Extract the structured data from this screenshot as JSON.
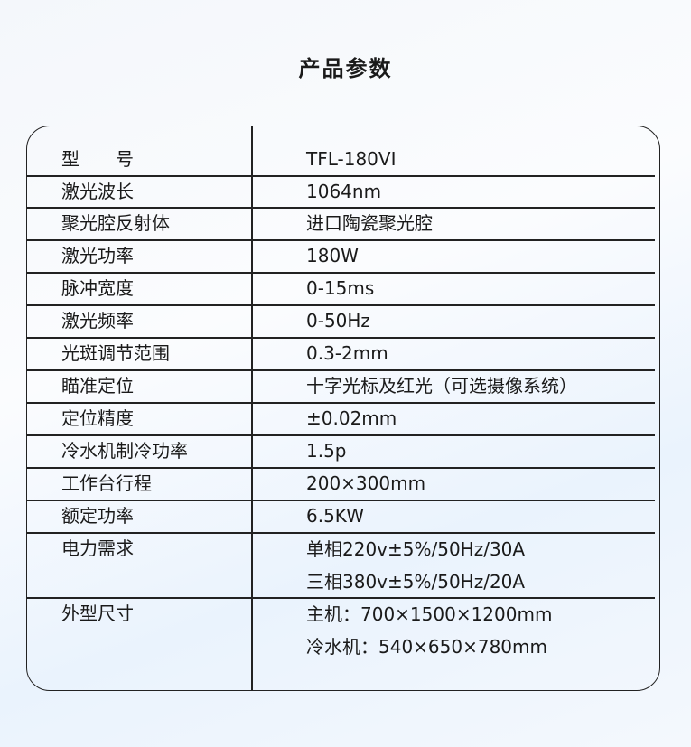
{
  "title": "产品参数",
  "rows": [
    {
      "label": "型　　号",
      "values": [
        "TFL-180VI"
      ]
    },
    {
      "label": "激光波长",
      "values": [
        "1064nm"
      ]
    },
    {
      "label": "聚光腔反射体",
      "values": [
        "进口陶瓷聚光腔"
      ]
    },
    {
      "label": "激光功率",
      "values": [
        "180W"
      ]
    },
    {
      "label": "脉冲宽度",
      "values": [
        "0-15ms"
      ]
    },
    {
      "label": "激光频率",
      "values": [
        "0-50Hz"
      ]
    },
    {
      "label": "光斑调节范围",
      "values": [
        "0.3-2mm"
      ]
    },
    {
      "label": "瞄准定位",
      "values": [
        "十字光标及红光（可选摄像系统）"
      ]
    },
    {
      "label": "定位精度",
      "values": [
        "±0.02mm"
      ]
    },
    {
      "label": "冷水机制冷功率",
      "values": [
        "1.5p"
      ]
    },
    {
      "label": "工作台行程",
      "values": [
        "200×300mm"
      ]
    },
    {
      "label": "额定功率",
      "values": [
        "6.5KW"
      ]
    },
    {
      "label": "电力需求",
      "values": [
        "单相220v±5%/50Hz/30A",
        "三相380v±5%/50Hz/20A"
      ]
    },
    {
      "label": "外型尺寸",
      "values": [
        "主机：700×1500×1200mm",
        "冷水机：540×650×780mm"
      ]
    }
  ]
}
